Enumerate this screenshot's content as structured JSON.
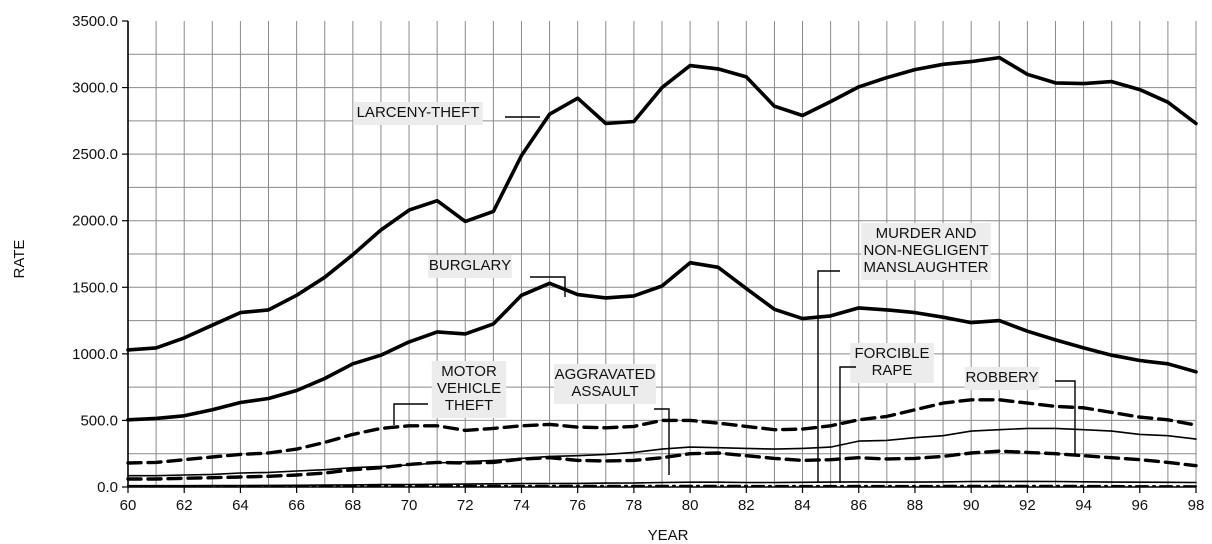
{
  "chart_data": {
    "type": "line",
    "title": "",
    "xlabel": "YEAR",
    "ylabel": "RATE",
    "xlim": [
      60,
      98
    ],
    "ylim": [
      0,
      3500
    ],
    "grid": true,
    "x_tick_labels": [
      "60",
      "62",
      "64",
      "66",
      "68",
      "70",
      "72",
      "74",
      "76",
      "78",
      "80",
      "82",
      "84",
      "86",
      "88",
      "90",
      "92",
      "94",
      "96",
      "98"
    ],
    "y_tick_labels": [
      "0.0",
      "500.0",
      "1000.0",
      "1500.0",
      "2000.0",
      "2500.0",
      "3000.0",
      "3500.0"
    ],
    "x": [
      60,
      61,
      62,
      63,
      64,
      65,
      66,
      67,
      68,
      69,
      70,
      71,
      72,
      73,
      74,
      75,
      76,
      77,
      78,
      79,
      80,
      81,
      82,
      83,
      84,
      85,
      86,
      87,
      88,
      89,
      90,
      91,
      92,
      93,
      94,
      95,
      96,
      97,
      98
    ],
    "series": [
      {
        "name": "LARCENY-THEFT",
        "style": "thick-solid",
        "values": [
          1030,
          1045,
          1120,
          1215,
          1310,
          1330,
          1440,
          1575,
          1745,
          1930,
          2080,
          2150,
          1995,
          2070,
          2490,
          2800,
          2920,
          2730,
          2745,
          3000,
          3165,
          3140,
          3080,
          2860,
          2790,
          2895,
          3005,
          3075,
          3135,
          3175,
          3195,
          3225,
          3100,
          3035,
          3030,
          3045,
          2985,
          2890,
          2730
        ]
      },
      {
        "name": "BURGLARY",
        "style": "thick-solid",
        "values": [
          505,
          515,
          535,
          580,
          635,
          665,
          725,
          815,
          925,
          990,
          1090,
          1165,
          1150,
          1225,
          1440,
          1530,
          1445,
          1420,
          1435,
          1510,
          1685,
          1650,
          1490,
          1335,
          1265,
          1285,
          1345,
          1330,
          1310,
          1275,
          1235,
          1250,
          1170,
          1105,
          1045,
          990,
          950,
          925,
          865
        ]
      },
      {
        "name": "MOTOR VEHICLE THEFT",
        "style": "dashed",
        "values": [
          180,
          185,
          205,
          225,
          245,
          255,
          285,
          335,
          395,
          440,
          460,
          460,
          425,
          440,
          460,
          470,
          450,
          445,
          455,
          500,
          500,
          480,
          455,
          430,
          435,
          460,
          505,
          530,
          580,
          630,
          655,
          655,
          630,
          605,
          595,
          560,
          525,
          505,
          465
        ]
      },
      {
        "name": "AGGRAVATED ASSAULT",
        "style": "thin-solid",
        "values": [
          85,
          85,
          90,
          95,
          105,
          110,
          120,
          130,
          145,
          155,
          165,
          180,
          190,
          200,
          215,
          230,
          235,
          245,
          260,
          285,
          300,
          295,
          290,
          285,
          290,
          300,
          345,
          350,
          370,
          385,
          420,
          430,
          440,
          440,
          430,
          420,
          395,
          385,
          360
        ]
      },
      {
        "name": "ROBBERY",
        "style": "dashed",
        "values": [
          60,
          60,
          65,
          70,
          75,
          80,
          90,
          105,
          130,
          145,
          170,
          185,
          180,
          185,
          210,
          220,
          200,
          195,
          200,
          220,
          250,
          255,
          235,
          215,
          200,
          205,
          220,
          210,
          215,
          230,
          255,
          270,
          260,
          250,
          235,
          220,
          205,
          185,
          160
        ]
      },
      {
        "name": "FORCIBLE RAPE",
        "style": "thin-solid",
        "values": [
          10,
          10,
          10,
          11,
          11,
          12,
          13,
          14,
          16,
          18,
          19,
          20,
          22,
          24,
          26,
          26,
          27,
          29,
          30,
          34,
          36,
          36,
          34,
          34,
          35,
          37,
          38,
          37,
          37,
          38,
          41,
          42,
          42,
          41,
          39,
          37,
          36,
          35,
          34
        ]
      },
      {
        "name": "MURDER AND NON-NEGLIGENT MANSLAUGHTER",
        "style": "dash-dot",
        "values": [
          5,
          5,
          5,
          5,
          5,
          5,
          6,
          6,
          7,
          8,
          8,
          9,
          9,
          9,
          10,
          10,
          9,
          9,
          9,
          10,
          10,
          10,
          9,
          8,
          8,
          8,
          9,
          8,
          8,
          9,
          9,
          10,
          9,
          9,
          9,
          8,
          7,
          7,
          6
        ]
      }
    ],
    "annotations": [
      {
        "series": "LARCENY-THEFT",
        "lines": [
          "LARCENY-THEFT"
        ]
      },
      {
        "series": "BURGLARY",
        "lines": [
          "BURGLARY"
        ]
      },
      {
        "series": "MURDER AND NON-NEGLIGENT MANSLAUGHTER",
        "lines": [
          "MURDER AND",
          "NON-NEGLIGENT",
          "MANSLAUGHTER"
        ]
      },
      {
        "series": "MOTOR VEHICLE THEFT",
        "lines": [
          "MOTOR",
          "VEHICLE",
          "THEFT"
        ]
      },
      {
        "series": "AGGRAVATED ASSAULT",
        "lines": [
          "AGGRAVATED",
          "ASSAULT"
        ]
      },
      {
        "series": "FORCIBLE RAPE",
        "lines": [
          "FORCIBLE",
          "RAPE"
        ]
      },
      {
        "series": "ROBBERY",
        "lines": [
          "ROBBERY"
        ]
      }
    ]
  }
}
